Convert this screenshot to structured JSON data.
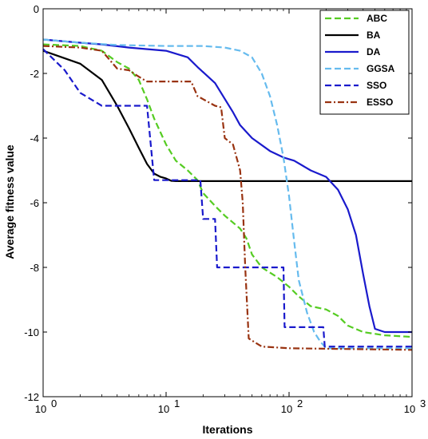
{
  "chart_data": {
    "type": "line",
    "title": "",
    "xlabel": "Iterations",
    "ylabel": "Average fitness value",
    "xscale": "log",
    "xlim": [
      1,
      1000
    ],
    "ylim": [
      -12,
      0
    ],
    "x_ticks": [
      1,
      10,
      100,
      1000
    ],
    "x_tick_labels": [
      {
        "base": "10",
        "exp": "0"
      },
      {
        "base": "10",
        "exp": "1"
      },
      {
        "base": "10",
        "exp": "2"
      },
      {
        "base": "10",
        "exp": "3"
      }
    ],
    "y_ticks": [
      0,
      -2,
      -4,
      -6,
      -8,
      -10,
      -12
    ],
    "y_tick_labels": [
      "0",
      "-2",
      "-4",
      "-6",
      "-8",
      "-10",
      "-12"
    ],
    "grid": false,
    "legend_position": "top-right",
    "series": [
      {
        "name": "ABC",
        "color": "#55cc22",
        "dash": "dashed",
        "points": [
          [
            1,
            -1.1
          ],
          [
            2,
            -1.15
          ],
          [
            3,
            -1.3
          ],
          [
            4,
            -1.65
          ],
          [
            5,
            -1.85
          ],
          [
            6,
            -2.2
          ],
          [
            7,
            -2.8
          ],
          [
            8,
            -3.4
          ],
          [
            10,
            -4.2
          ],
          [
            12,
            -4.7
          ],
          [
            15,
            -5.0
          ],
          [
            18,
            -5.3
          ],
          [
            20,
            -5.7
          ],
          [
            25,
            -6.1
          ],
          [
            30,
            -6.4
          ],
          [
            40,
            -6.8
          ],
          [
            45,
            -7.1
          ],
          [
            50,
            -7.6
          ],
          [
            60,
            -8.0
          ],
          [
            80,
            -8.3
          ],
          [
            100,
            -8.6
          ],
          [
            120,
            -8.9
          ],
          [
            150,
            -9.2
          ],
          [
            200,
            -9.3
          ],
          [
            250,
            -9.5
          ],
          [
            300,
            -9.8
          ],
          [
            400,
            -10.0
          ],
          [
            600,
            -10.1
          ],
          [
            1000,
            -10.15
          ]
        ]
      },
      {
        "name": "BA",
        "color": "#000000",
        "dash": "solid",
        "points": [
          [
            1,
            -1.3
          ],
          [
            2,
            -1.7
          ],
          [
            3,
            -2.2
          ],
          [
            4,
            -3.0
          ],
          [
            5,
            -3.7
          ],
          [
            6,
            -4.3
          ],
          [
            7,
            -4.8
          ],
          [
            8,
            -5.1
          ],
          [
            9,
            -5.2
          ],
          [
            10,
            -5.25
          ],
          [
            11,
            -5.32
          ],
          [
            12,
            -5.33
          ],
          [
            1000,
            -5.33
          ]
        ]
      },
      {
        "name": "DA",
        "color": "#1a1acc",
        "dash": "solid",
        "points": [
          [
            1,
            -0.95
          ],
          [
            2,
            -1.05
          ],
          [
            3,
            -1.1
          ],
          [
            5,
            -1.2
          ],
          [
            10,
            -1.3
          ],
          [
            15,
            -1.5
          ],
          [
            18,
            -1.8
          ],
          [
            25,
            -2.3
          ],
          [
            35,
            -3.2
          ],
          [
            40,
            -3.6
          ],
          [
            50,
            -4.0
          ],
          [
            70,
            -4.4
          ],
          [
            90,
            -4.6
          ],
          [
            110,
            -4.7
          ],
          [
            150,
            -5.0
          ],
          [
            200,
            -5.2
          ],
          [
            250,
            -5.6
          ],
          [
            300,
            -6.2
          ],
          [
            350,
            -7.0
          ],
          [
            400,
            -8.2
          ],
          [
            450,
            -9.2
          ],
          [
            500,
            -9.9
          ],
          [
            600,
            -10.0
          ],
          [
            1000,
            -10.0
          ]
        ]
      },
      {
        "name": "GGSA",
        "color": "#66bbee",
        "dash": "dashed",
        "points": [
          [
            1,
            -0.95
          ],
          [
            2,
            -1.05
          ],
          [
            4,
            -1.12
          ],
          [
            10,
            -1.15
          ],
          [
            20,
            -1.15
          ],
          [
            30,
            -1.2
          ],
          [
            40,
            -1.3
          ],
          [
            50,
            -1.5
          ],
          [
            60,
            -2.0
          ],
          [
            70,
            -2.7
          ],
          [
            80,
            -3.6
          ],
          [
            90,
            -4.6
          ],
          [
            100,
            -5.8
          ],
          [
            110,
            -7.2
          ],
          [
            120,
            -8.4
          ],
          [
            140,
            -9.4
          ],
          [
            160,
            -10.0
          ],
          [
            180,
            -10.3
          ],
          [
            200,
            -10.5
          ],
          [
            1000,
            -10.5
          ]
        ]
      },
      {
        "name": "SSO",
        "color": "#1a1acc",
        "dash": "dashed",
        "points": [
          [
            1,
            -1.25
          ],
          [
            1.5,
            -1.9
          ],
          [
            2,
            -2.6
          ],
          [
            3,
            -3.0
          ],
          [
            7,
            -3.0
          ],
          [
            8,
            -5.3
          ],
          [
            19,
            -5.3
          ],
          [
            20,
            -6.5
          ],
          [
            25,
            -6.5
          ],
          [
            26,
            -8.0
          ],
          [
            80,
            -8.0
          ],
          [
            90,
            -8.0
          ],
          [
            92,
            -9.85
          ],
          [
            190,
            -9.85
          ],
          [
            195,
            -10.45
          ],
          [
            1000,
            -10.45
          ]
        ]
      },
      {
        "name": "ESSO",
        "color": "#993311",
        "dash": "dashdot",
        "points": [
          [
            1,
            -1.15
          ],
          [
            2,
            -1.2
          ],
          [
            3,
            -1.3
          ],
          [
            4,
            -1.85
          ],
          [
            5,
            -1.9
          ],
          [
            6,
            -2.1
          ],
          [
            7,
            -2.25
          ],
          [
            16,
            -2.25
          ],
          [
            18,
            -2.7
          ],
          [
            25,
            -3.0
          ],
          [
            28,
            -3.05
          ],
          [
            30,
            -4.0
          ],
          [
            35,
            -4.2
          ],
          [
            40,
            -5.0
          ],
          [
            42,
            -6.0
          ],
          [
            44,
            -8.0
          ],
          [
            47,
            -10.2
          ],
          [
            60,
            -10.45
          ],
          [
            100,
            -10.5
          ],
          [
            1000,
            -10.55
          ]
        ]
      }
    ]
  }
}
